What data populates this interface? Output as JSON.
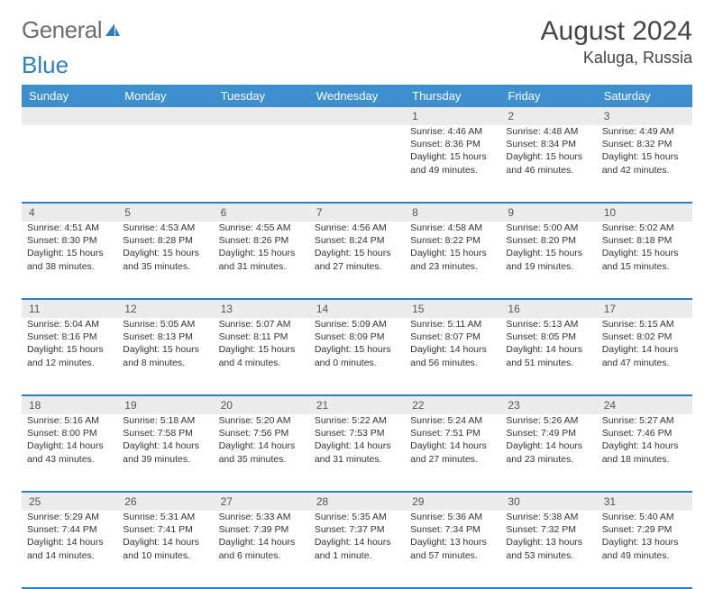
{
  "brand": {
    "part1": "General",
    "part2": "Blue"
  },
  "title": "August 2024",
  "location": "Kaluga, Russia",
  "colors": {
    "header_bg": "#3d8fce",
    "header_text": "#ffffff",
    "daynum_bg": "#ececec",
    "rule": "#2d7fc1",
    "logo_grey": "#6d6d6d",
    "logo_blue": "#2d7fc1"
  },
  "day_names": [
    "Sunday",
    "Monday",
    "Tuesday",
    "Wednesday",
    "Thursday",
    "Friday",
    "Saturday"
  ],
  "weeks": [
    [
      {
        "n": "",
        "lines": [
          "",
          "",
          ""
        ]
      },
      {
        "n": "",
        "lines": [
          "",
          "",
          ""
        ]
      },
      {
        "n": "",
        "lines": [
          "",
          "",
          ""
        ]
      },
      {
        "n": "",
        "lines": [
          "",
          "",
          ""
        ]
      },
      {
        "n": "1",
        "lines": [
          "Sunrise: 4:46 AM",
          "Sunset: 8:36 PM",
          "Daylight: 15 hours and 49 minutes."
        ]
      },
      {
        "n": "2",
        "lines": [
          "Sunrise: 4:48 AM",
          "Sunset: 8:34 PM",
          "Daylight: 15 hours and 46 minutes."
        ]
      },
      {
        "n": "3",
        "lines": [
          "Sunrise: 4:49 AM",
          "Sunset: 8:32 PM",
          "Daylight: 15 hours and 42 minutes."
        ]
      }
    ],
    [
      {
        "n": "4",
        "lines": [
          "Sunrise: 4:51 AM",
          "Sunset: 8:30 PM",
          "Daylight: 15 hours and 38 minutes."
        ]
      },
      {
        "n": "5",
        "lines": [
          "Sunrise: 4:53 AM",
          "Sunset: 8:28 PM",
          "Daylight: 15 hours and 35 minutes."
        ]
      },
      {
        "n": "6",
        "lines": [
          "Sunrise: 4:55 AM",
          "Sunset: 8:26 PM",
          "Daylight: 15 hours and 31 minutes."
        ]
      },
      {
        "n": "7",
        "lines": [
          "Sunrise: 4:56 AM",
          "Sunset: 8:24 PM",
          "Daylight: 15 hours and 27 minutes."
        ]
      },
      {
        "n": "8",
        "lines": [
          "Sunrise: 4:58 AM",
          "Sunset: 8:22 PM",
          "Daylight: 15 hours and 23 minutes."
        ]
      },
      {
        "n": "9",
        "lines": [
          "Sunrise: 5:00 AM",
          "Sunset: 8:20 PM",
          "Daylight: 15 hours and 19 minutes."
        ]
      },
      {
        "n": "10",
        "lines": [
          "Sunrise: 5:02 AM",
          "Sunset: 8:18 PM",
          "Daylight: 15 hours and 15 minutes."
        ]
      }
    ],
    [
      {
        "n": "11",
        "lines": [
          "Sunrise: 5:04 AM",
          "Sunset: 8:16 PM",
          "Daylight: 15 hours and 12 minutes."
        ]
      },
      {
        "n": "12",
        "lines": [
          "Sunrise: 5:05 AM",
          "Sunset: 8:13 PM",
          "Daylight: 15 hours and 8 minutes."
        ]
      },
      {
        "n": "13",
        "lines": [
          "Sunrise: 5:07 AM",
          "Sunset: 8:11 PM",
          "Daylight: 15 hours and 4 minutes."
        ]
      },
      {
        "n": "14",
        "lines": [
          "Sunrise: 5:09 AM",
          "Sunset: 8:09 PM",
          "Daylight: 15 hours and 0 minutes."
        ]
      },
      {
        "n": "15",
        "lines": [
          "Sunrise: 5:11 AM",
          "Sunset: 8:07 PM",
          "Daylight: 14 hours and 56 minutes."
        ]
      },
      {
        "n": "16",
        "lines": [
          "Sunrise: 5:13 AM",
          "Sunset: 8:05 PM",
          "Daylight: 14 hours and 51 minutes."
        ]
      },
      {
        "n": "17",
        "lines": [
          "Sunrise: 5:15 AM",
          "Sunset: 8:02 PM",
          "Daylight: 14 hours and 47 minutes."
        ]
      }
    ],
    [
      {
        "n": "18",
        "lines": [
          "Sunrise: 5:16 AM",
          "Sunset: 8:00 PM",
          "Daylight: 14 hours and 43 minutes."
        ]
      },
      {
        "n": "19",
        "lines": [
          "Sunrise: 5:18 AM",
          "Sunset: 7:58 PM",
          "Daylight: 14 hours and 39 minutes."
        ]
      },
      {
        "n": "20",
        "lines": [
          "Sunrise: 5:20 AM",
          "Sunset: 7:56 PM",
          "Daylight: 14 hours and 35 minutes."
        ]
      },
      {
        "n": "21",
        "lines": [
          "Sunrise: 5:22 AM",
          "Sunset: 7:53 PM",
          "Daylight: 14 hours and 31 minutes."
        ]
      },
      {
        "n": "22",
        "lines": [
          "Sunrise: 5:24 AM",
          "Sunset: 7:51 PM",
          "Daylight: 14 hours and 27 minutes."
        ]
      },
      {
        "n": "23",
        "lines": [
          "Sunrise: 5:26 AM",
          "Sunset: 7:49 PM",
          "Daylight: 14 hours and 23 minutes."
        ]
      },
      {
        "n": "24",
        "lines": [
          "Sunrise: 5:27 AM",
          "Sunset: 7:46 PM",
          "Daylight: 14 hours and 18 minutes."
        ]
      }
    ],
    [
      {
        "n": "25",
        "lines": [
          "Sunrise: 5:29 AM",
          "Sunset: 7:44 PM",
          "Daylight: 14 hours and 14 minutes."
        ]
      },
      {
        "n": "26",
        "lines": [
          "Sunrise: 5:31 AM",
          "Sunset: 7:41 PM",
          "Daylight: 14 hours and 10 minutes."
        ]
      },
      {
        "n": "27",
        "lines": [
          "Sunrise: 5:33 AM",
          "Sunset: 7:39 PM",
          "Daylight: 14 hours and 6 minutes."
        ]
      },
      {
        "n": "28",
        "lines": [
          "Sunrise: 5:35 AM",
          "Sunset: 7:37 PM",
          "Daylight: 14 hours and 1 minute."
        ]
      },
      {
        "n": "29",
        "lines": [
          "Sunrise: 5:36 AM",
          "Sunset: 7:34 PM",
          "Daylight: 13 hours and 57 minutes."
        ]
      },
      {
        "n": "30",
        "lines": [
          "Sunrise: 5:38 AM",
          "Sunset: 7:32 PM",
          "Daylight: 13 hours and 53 minutes."
        ]
      },
      {
        "n": "31",
        "lines": [
          "Sunrise: 5:40 AM",
          "Sunset: 7:29 PM",
          "Daylight: 13 hours and 49 minutes."
        ]
      }
    ]
  ]
}
